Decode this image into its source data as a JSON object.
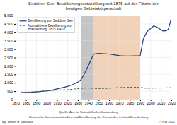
{
  "chart_data": {
    "type": "line",
    "title": "Seddiner See: Bevölkerungsentwicklung seit 1875 auf der Fläche der\nheutigen Gebietskörperschaft",
    "xlim": [
      1870,
      2020
    ],
    "xticks": [
      1870,
      1880,
      1890,
      1900,
      1910,
      1920,
      1930,
      1940,
      1950,
      1960,
      1970,
      1980,
      1990,
      2000,
      2010,
      2020
    ],
    "ylim": [
      0,
      5000
    ],
    "yticks": [
      0,
      500,
      {
        "value": 1000,
        "label": "1.000"
      },
      {
        "value": 1500,
        "label": "1.500"
      },
      {
        "value": 2000,
        "label": "2.000"
      },
      {
        "value": 2500,
        "label": "2.500"
      },
      {
        "value": 3000,
        "label": "3.000"
      },
      {
        "value": 3500,
        "label": "3.500"
      },
      {
        "value": 4000,
        "label": "4.000"
      },
      {
        "value": 4500,
        "label": "4.500"
      },
      {
        "value": 5000,
        "label": "5.000"
      }
    ],
    "grid": true,
    "legend": "upper left",
    "spans": [
      {
        "start": 1933,
        "end": 1945,
        "color": "#b0b0b0"
      },
      {
        "start": 1945,
        "end": 1990,
        "color": "#e8b48a"
      }
    ],
    "series": [
      {
        "name": "Bevölkerung von Seddiner See",
        "color": "#1f3d7a",
        "line_style": "solid",
        "x": [
          1875,
          1880,
          1885,
          1890,
          1895,
          1900,
          1905,
          1910,
          1915,
          1920,
          1925,
          1930,
          1933,
          1935,
          1939,
          1945,
          1946,
          1950,
          1955,
          1960,
          1964,
          1967,
          1970,
          1975,
          1980,
          1985,
          1990,
          1993,
          1995,
          1998,
          2000,
          2003,
          2005,
          2007,
          2010,
          2012,
          2015,
          2017,
          2020
        ],
        "values": [
          418,
          425,
          438,
          460,
          485,
          515,
          565,
          635,
          710,
          785,
          890,
          1040,
          1190,
          1390,
          1880,
          2680,
          2720,
          2750,
          2730,
          2710,
          2670,
          2640,
          2610,
          2590,
          2595,
          2605,
          2615,
          3600,
          3850,
          4150,
          4220,
          4380,
          4340,
          4280,
          4150,
          4080,
          4090,
          4180,
          4820
        ]
      },
      {
        "name": "Normalisierte Bevölkerung von\nBrandenburg: 1875 = 418",
        "color": "#555555",
        "line_style": "dashed",
        "x": [
          1875,
          1880,
          1890,
          1900,
          1910,
          1920,
          1925,
          1930,
          1933,
          1939,
          1945,
          1950,
          1960,
          1970,
          1980,
          1990,
          1995,
          2000,
          2005,
          2010,
          2015,
          2020
        ],
        "values": [
          418,
          435,
          470,
          515,
          568,
          588,
          618,
          648,
          668,
          695,
          665,
          658,
          675,
          715,
          735,
          725,
          678,
          678,
          685,
          688,
          698,
          708
        ]
      }
    ],
    "annotations": [
      "Quelle: Amt für Statistik Berlin-Brandenburg",
      "Historische Gemeindestatistiken und Bevölkerung der Gemeinden im Land Brandenburg",
      "By: Simon G. Überlack",
      "© PW 2022"
    ]
  }
}
